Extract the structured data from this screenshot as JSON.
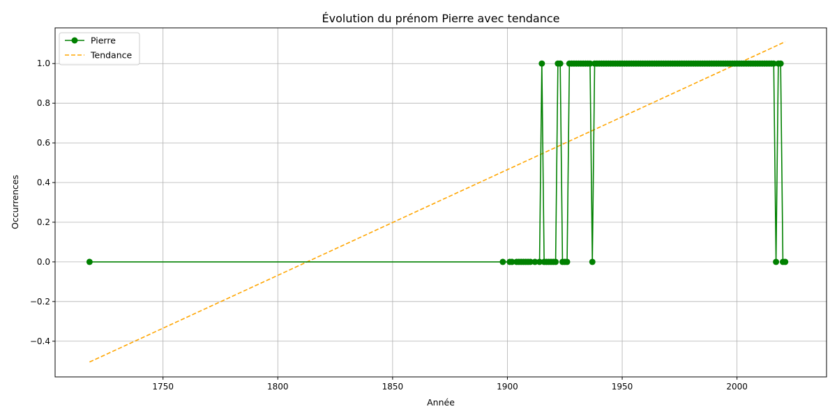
{
  "chart_data": {
    "type": "line",
    "title": "Évolution du prénom Pierre avec tendance",
    "xlabel": "Année",
    "ylabel": "Occurrences",
    "xlim": [
      1703,
      2039
    ],
    "ylim": [
      -0.58,
      1.18
    ],
    "xticks": [
      1750,
      1800,
      1850,
      1900,
      1950,
      2000
    ],
    "yticks": [
      -0.4,
      -0.2,
      0.0,
      0.2,
      0.4,
      0.6,
      0.8,
      1.0
    ],
    "xtick_labels": [
      "1750",
      "1800",
      "1850",
      "1900",
      "1950",
      "2000"
    ],
    "ytick_labels": [
      "−0.4",
      "−0.2",
      "0.0",
      "0.2",
      "0.4",
      "0.6",
      "0.8",
      "1.0"
    ],
    "grid": true,
    "legend_position": "top-left",
    "series": [
      {
        "name": "Pierre",
        "style": "line-marker",
        "color": "#008000",
        "points": [
          [
            1718,
            0
          ],
          [
            1898,
            0
          ],
          [
            1901,
            0
          ],
          [
            1902,
            0
          ],
          [
            1904,
            0
          ],
          [
            1905,
            0
          ],
          [
            1906,
            0
          ],
          [
            1907,
            0
          ],
          [
            1908,
            0
          ],
          [
            1909,
            0
          ],
          [
            1910,
            0
          ],
          [
            1912,
            0
          ],
          [
            1914,
            0
          ],
          [
            1915,
            1
          ],
          [
            1916,
            0
          ],
          [
            1917,
            0
          ],
          [
            1918,
            0
          ],
          [
            1919,
            0
          ],
          [
            1920,
            0
          ],
          [
            1921,
            0
          ],
          [
            1922,
            1
          ],
          [
            1923,
            1
          ],
          [
            1924,
            0
          ],
          [
            1925,
            0
          ],
          [
            1926,
            0
          ],
          [
            1927,
            1
          ],
          [
            1928,
            1
          ],
          [
            1929,
            1
          ],
          [
            1930,
            1
          ],
          [
            1931,
            1
          ],
          [
            1932,
            1
          ],
          [
            1933,
            1
          ],
          [
            1934,
            1
          ],
          [
            1935,
            1
          ],
          [
            1936,
            1
          ],
          [
            1937,
            0
          ],
          [
            1938,
            1
          ],
          [
            1939,
            1
          ],
          [
            1940,
            1
          ],
          [
            1941,
            1
          ],
          [
            1942,
            1
          ],
          [
            1943,
            1
          ],
          [
            1944,
            1
          ],
          [
            1945,
            1
          ],
          [
            1946,
            1
          ],
          [
            1947,
            1
          ],
          [
            1948,
            1
          ],
          [
            1949,
            1
          ],
          [
            1950,
            1
          ],
          [
            1951,
            1
          ],
          [
            1952,
            1
          ],
          [
            1953,
            1
          ],
          [
            1954,
            1
          ],
          [
            1955,
            1
          ],
          [
            1956,
            1
          ],
          [
            1957,
            1
          ],
          [
            1958,
            1
          ],
          [
            1959,
            1
          ],
          [
            1960,
            1
          ],
          [
            1961,
            1
          ],
          [
            1962,
            1
          ],
          [
            1963,
            1
          ],
          [
            1964,
            1
          ],
          [
            1965,
            1
          ],
          [
            1966,
            1
          ],
          [
            1967,
            1
          ],
          [
            1968,
            1
          ],
          [
            1969,
            1
          ],
          [
            1970,
            1
          ],
          [
            1971,
            1
          ],
          [
            1972,
            1
          ],
          [
            1973,
            1
          ],
          [
            1974,
            1
          ],
          [
            1975,
            1
          ],
          [
            1976,
            1
          ],
          [
            1977,
            1
          ],
          [
            1978,
            1
          ],
          [
            1979,
            1
          ],
          [
            1980,
            1
          ],
          [
            1981,
            1
          ],
          [
            1982,
            1
          ],
          [
            1983,
            1
          ],
          [
            1984,
            1
          ],
          [
            1985,
            1
          ],
          [
            1986,
            1
          ],
          [
            1987,
            1
          ],
          [
            1988,
            1
          ],
          [
            1989,
            1
          ],
          [
            1990,
            1
          ],
          [
            1991,
            1
          ],
          [
            1992,
            1
          ],
          [
            1993,
            1
          ],
          [
            1994,
            1
          ],
          [
            1995,
            1
          ],
          [
            1996,
            1
          ],
          [
            1997,
            1
          ],
          [
            1998,
            1
          ],
          [
            1999,
            1
          ],
          [
            2000,
            1
          ],
          [
            2001,
            1
          ],
          [
            2002,
            1
          ],
          [
            2003,
            1
          ],
          [
            2004,
            1
          ],
          [
            2005,
            1
          ],
          [
            2006,
            1
          ],
          [
            2007,
            1
          ],
          [
            2008,
            1
          ],
          [
            2009,
            1
          ],
          [
            2010,
            1
          ],
          [
            2011,
            1
          ],
          [
            2012,
            1
          ],
          [
            2013,
            1
          ],
          [
            2014,
            1
          ],
          [
            2015,
            1
          ],
          [
            2016,
            1
          ],
          [
            2017,
            0
          ],
          [
            2018,
            1
          ],
          [
            2019,
            1
          ],
          [
            2020,
            0
          ],
          [
            2021,
            0
          ]
        ]
      },
      {
        "name": "Tendance",
        "style": "dashed",
        "color": "#FFA500",
        "points": [
          [
            1718,
            -0.505
          ],
          [
            2021,
            1.11
          ]
        ]
      }
    ]
  },
  "colors": {
    "grid": "#b0b0b0",
    "axes": "#000000",
    "legend_border": "#cccccc"
  }
}
